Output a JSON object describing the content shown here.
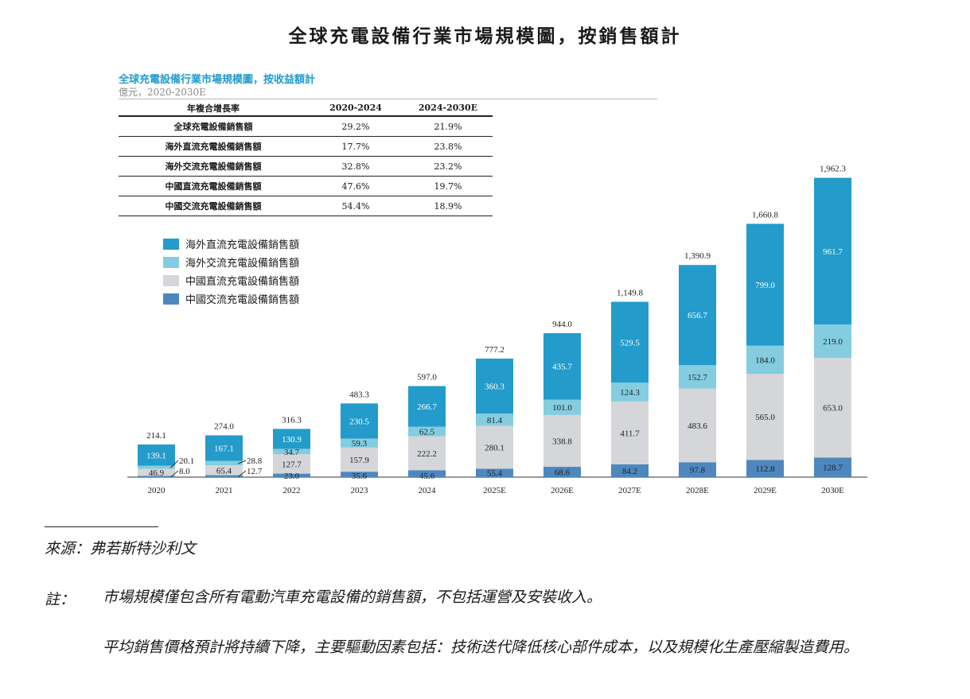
{
  "page_title": "全球充電設備行業市場規模圖，按銷售額計",
  "source": "來源：弗若斯特沙利文",
  "notes": {
    "label": "註：",
    "items": [
      "市場規模僅包含所有電動汽車充電設備的銷售額，不包括運營及安裝收入。",
      "平均銷售價格預計將持續下降，主要驅動因素包括：技術迭代降低核心部件成本，以及規模化生產壓縮製造費用。"
    ]
  },
  "colors": {
    "overseas_dc": "#239ccb",
    "overseas_ac": "#84cde0",
    "china_dc": "#d5d6d9",
    "china_ac": "#4e87be"
  },
  "cagr_table": {
    "headers": [
      "年複合增長率",
      "2020-2024",
      "2024-2030E"
    ],
    "rows": [
      {
        "label": "全球充電設備銷售額",
        "v1": "29.2%",
        "v2": "21.9%"
      },
      {
        "label": "海外直流充電設備銷售額",
        "v1": "17.7%",
        "v2": "23.8%"
      },
      {
        "label": "海外交流充電設備銷售額",
        "v1": "32.8%",
        "v2": "23.2%"
      },
      {
        "label": "中國直流充電設備銷售額",
        "v1": "47.6%",
        "v2": "19.7%"
      },
      {
        "label": "中國交流充電設備銷售額",
        "v1": "54.4%",
        "v2": "18.9%"
      }
    ]
  },
  "chart_data": {
    "type": "bar",
    "stacked": true,
    "title": "全球充電設備行業市場規模圖，按收益額計",
    "subtitle": "億元，2020-2030E",
    "categories": [
      "2020",
      "2021",
      "2022",
      "2023",
      "2024",
      "2025E",
      "2026E",
      "2027E",
      "2028E",
      "2029E",
      "2030E"
    ],
    "totals": [
      "214.1",
      "274.0",
      "316.3",
      "483.3",
      "597.0",
      "777.2",
      "944.0",
      "1,149.8",
      "1,390.9",
      "1,660.8",
      "1,962.3"
    ],
    "series": [
      {
        "name": "中國交流充電設備銷售額",
        "color_key": "china_ac",
        "values": [
          8.0,
          12.7,
          23.0,
          35.6,
          45.6,
          55.4,
          68.6,
          84.2,
          97.8,
          112.8,
          128.7
        ],
        "labels": [
          "8.0",
          "12.7",
          "23.0",
          "35.6",
          "45.6",
          "55.4",
          "68.6",
          "84.2",
          "97.8",
          "112.8",
          "128.7"
        ]
      },
      {
        "name": "中國直流充電設備銷售額",
        "color_key": "china_dc",
        "values": [
          46.9,
          65.4,
          127.7,
          157.9,
          222.2,
          280.1,
          338.8,
          411.7,
          483.6,
          565.0,
          653.0
        ],
        "labels": [
          "46.9",
          "65.4",
          "127.7",
          "157.9",
          "222.2",
          "280.1",
          "338.8",
          "411.7",
          "483.6",
          "565.0",
          "653.0"
        ]
      },
      {
        "name": "海外交流充電設備銷售額",
        "color_key": "overseas_ac",
        "values": [
          20.1,
          28.8,
          34.7,
          59.3,
          62.5,
          81.4,
          101.0,
          124.3,
          152.7,
          184.0,
          219.0
        ],
        "labels": [
          "20.1",
          "28.8",
          "34.7",
          "59.3",
          "62.5",
          "81.4",
          "101.0",
          "124.3",
          "152.7",
          "184.0",
          "219.0"
        ]
      },
      {
        "name": "海外直流充電設備銷售額",
        "color_key": "overseas_dc",
        "values": [
          139.1,
          167.1,
          130.9,
          230.5,
          266.7,
          360.3,
          435.7,
          529.5,
          656.7,
          799.0,
          961.7
        ],
        "labels": [
          "139.1",
          "167.1",
          "130.9",
          "230.5",
          "266.7",
          "360.3",
          "435.7",
          "529.5",
          "656.7",
          "799.0",
          "961.7"
        ]
      }
    ],
    "legend": [
      {
        "name": "海外直流充電設備銷售額",
        "color_key": "overseas_dc"
      },
      {
        "name": "海外交流充電設備銷售額",
        "color_key": "overseas_ac"
      },
      {
        "name": "中國直流充電設備銷售額",
        "color_key": "china_dc"
      },
      {
        "name": "中國交流充電設備銷售額",
        "color_key": "china_ac"
      }
    ],
    "legend_position": "top-left",
    "ylim": [
      0,
      2000
    ],
    "grid": false
  }
}
